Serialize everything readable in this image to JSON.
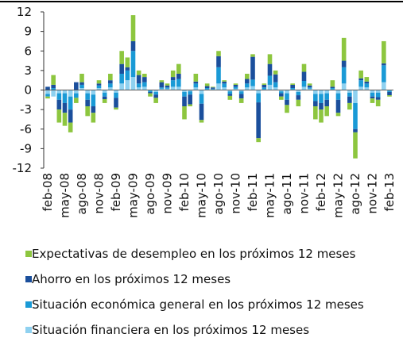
{
  "chart_data": {
    "type": "bar",
    "stacked": true,
    "categories": [
      "feb-08",
      null,
      null,
      "may-08",
      null,
      null,
      "ago-08",
      null,
      null,
      "nov-08",
      null,
      null,
      "feb-09",
      null,
      null,
      "may-09",
      null,
      null,
      "ago-09",
      null,
      null,
      "nov-09",
      null,
      null,
      "feb-10",
      null,
      null,
      "may-10",
      null,
      null,
      "ago-10",
      null,
      null,
      "nov-10",
      null,
      null,
      "feb-11",
      null,
      null,
      "may-11",
      null,
      null,
      "ago-11",
      null,
      null,
      "nov-11",
      null,
      null,
      "feb-12",
      null,
      null,
      "may-12",
      null,
      null,
      "ago-12",
      null,
      null,
      "nov-12",
      null,
      null,
      "feb-13"
    ],
    "series": [
      {
        "name": "Expectativas de desempleo en los próximos 12 meses",
        "color": "#8dc63f",
        "values": [
          -0.3,
          1.5,
          -2.0,
          -2.0,
          -1.5,
          -0.8,
          1.3,
          -1.5,
          -1.5,
          0.5,
          -0.6,
          1.0,
          -0.3,
          2.0,
          1.5,
          4.0,
          0.7,
          0.5,
          -0.5,
          -0.8,
          0.3,
          0.3,
          1.0,
          1.5,
          -2.0,
          -0.3,
          1.2,
          -0.4,
          0.4,
          0.1,
          0.8,
          0.2,
          -0.6,
          0.2,
          -0.7,
          0.8,
          0.4,
          -0.6,
          0.2,
          1.5,
          0.6,
          -0.5,
          -1.2,
          0.2,
          -1.0,
          1.2,
          0.3,
          -2.0,
          -2.0,
          -1.5,
          1.0,
          -0.5,
          3.5,
          -1.0,
          -4.0,
          1.2,
          0.7,
          -0.7,
          -1.0,
          3.4,
          -0.2
        ]
      },
      {
        "name": "Ahorro en los próximos 12 meses",
        "color": "#1b4f9c",
        "values": [
          0.5,
          0.5,
          -1.5,
          -1.5,
          -2.0,
          1.2,
          0.4,
          -1.0,
          -1.0,
          0.3,
          -0.4,
          0.5,
          -1.5,
          1.5,
          0.5,
          1.5,
          1.3,
          0.8,
          -0.2,
          -0.5,
          0.8,
          0.3,
          0.5,
          0.8,
          -1.5,
          -1.5,
          0.3,
          -2.5,
          0.3,
          0.2,
          1.7,
          0.3,
          -0.3,
          0.3,
          -0.7,
          0.7,
          3.5,
          -5.5,
          0.4,
          1.8,
          1.2,
          -0.5,
          -0.8,
          0.5,
          -0.7,
          1.4,
          0.3,
          -0.8,
          -1.0,
          -1.0,
          0.2,
          -2.0,
          1.0,
          -1.0,
          -0.5,
          0.3,
          0.3,
          -0.3,
          -0.4,
          0.3,
          -0.5
        ]
      },
      {
        "name": "Situación económica general en los próximos 12 meses",
        "color": "#1a9ad6",
        "values": [
          -0.4,
          0.3,
          -1.0,
          -1.5,
          -2.0,
          -0.7,
          0.5,
          -1.0,
          -1.8,
          0.4,
          -0.6,
          0.6,
          -0.8,
          1.5,
          1.5,
          4.0,
          0.6,
          0.7,
          -0.2,
          -0.4,
          0.2,
          0.2,
          1.0,
          1.2,
          -0.7,
          -0.5,
          0.6,
          -1.5,
          0.2,
          0.1,
          2.5,
          0.6,
          -0.4,
          0.3,
          -0.4,
          0.6,
          1.0,
          -1.4,
          0.3,
          1.4,
          0.8,
          -0.3,
          -1.0,
          0.2,
          -0.5,
          0.9,
          0.2,
          -1.1,
          -1.4,
          -1.0,
          0.2,
          -1.0,
          2.5,
          -0.6,
          -4.0,
          1.0,
          0.6,
          -0.6,
          -0.7,
          2.6,
          -0.2
        ]
      },
      {
        "name": "Situación financiera en los próximos 12 meses",
        "color": "#8fd1f0",
        "values": [
          -0.6,
          -1.0,
          -0.5,
          -0.5,
          -1.0,
          -0.5,
          0.3,
          -0.5,
          -0.7,
          0.3,
          -0.4,
          0.4,
          -0.4,
          1.0,
          1.5,
          2.0,
          0.4,
          0.5,
          -0.1,
          -0.3,
          0.2,
          0.2,
          0.5,
          0.5,
          -0.3,
          -0.2,
          0.4,
          -0.6,
          0.1,
          0.1,
          1.0,
          0.4,
          -0.2,
          0.2,
          -0.2,
          0.4,
          0.6,
          -0.5,
          0.1,
          0.8,
          0.4,
          -0.2,
          -0.5,
          0.1,
          -0.3,
          0.5,
          0.2,
          -0.6,
          -0.6,
          -0.5,
          0.1,
          -0.5,
          1.0,
          -0.4,
          -2.0,
          0.5,
          0.4,
          -0.4,
          -0.4,
          1.2,
          -0.1
        ]
      }
    ],
    "ylim": [
      -12,
      12
    ],
    "yticks": [
      -12,
      -9,
      -6,
      -3,
      0,
      3,
      6,
      9,
      12
    ],
    "grid": false
  }
}
